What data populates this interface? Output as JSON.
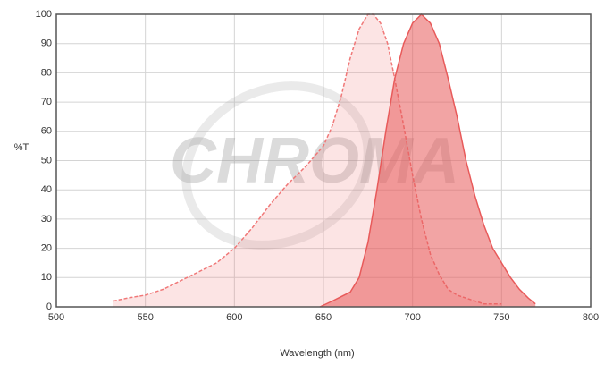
{
  "chart_data": {
    "type": "line",
    "x_label": "Wavelength (nm)",
    "y_label": "%T",
    "watermark": "CHROMA",
    "xlim": [
      500,
      800
    ],
    "xticks": [
      500,
      550,
      600,
      650,
      700,
      750,
      800
    ],
    "ylim": [
      0,
      100
    ],
    "yticks": [
      0,
      10,
      20,
      30,
      40,
      50,
      60,
      70,
      80,
      90,
      100
    ],
    "grid": true,
    "series": [
      {
        "color": "#f07878",
        "line_style": "dashed",
        "fill_opacity": 0.2,
        "x": [
          532,
          540,
          550,
          560,
          570,
          580,
          590,
          600,
          610,
          620,
          630,
          640,
          650,
          655,
          660,
          665,
          670,
          675,
          678,
          682,
          686,
          690,
          695,
          700,
          705,
          710,
          715,
          720,
          725,
          730,
          740,
          750
        ],
        "values": [
          2,
          3,
          4,
          6,
          9,
          12,
          15,
          20,
          27,
          35,
          42,
          48,
          55,
          62,
          72,
          85,
          95,
          100,
          100,
          97,
          90,
          78,
          62,
          45,
          30,
          18,
          11,
          6,
          4,
          3,
          1,
          1
        ]
      },
      {
        "color": "#e85a5a",
        "line_style": "solid",
        "fill_opacity": 0.55,
        "x": [
          648,
          655,
          665,
          670,
          675,
          680,
          685,
          690,
          695,
          700,
          705,
          710,
          715,
          720,
          725,
          730,
          735,
          740,
          745,
          750,
          755,
          760,
          765,
          769
        ],
        "values": [
          0,
          2,
          5,
          10,
          22,
          40,
          60,
          78,
          90,
          97,
          100,
          97,
          90,
          78,
          65,
          50,
          38,
          28,
          20,
          15,
          10,
          6,
          3,
          1
        ]
      }
    ]
  }
}
